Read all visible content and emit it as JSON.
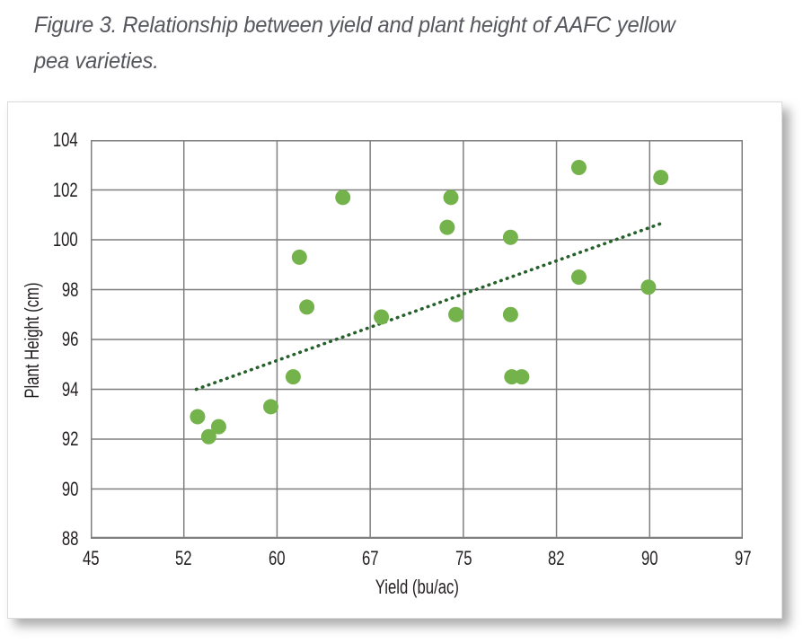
{
  "figure_caption": {
    "line1": "Figure 3. Relationship between yield and plant height of AAFC yellow",
    "line2": "pea varieties."
  },
  "chart_data": {
    "type": "scatter",
    "title": "",
    "xlabel": "Yield (bu/ac)",
    "ylabel": "Plant Height (cm)",
    "xlim": [
      45,
      97.5
    ],
    "ylim": [
      88,
      104
    ],
    "grid": true,
    "legend": "none",
    "x_tick_labels": [
      "45",
      "52",
      "60",
      "67",
      "75",
      "82",
      "90",
      "97"
    ],
    "x_tick_values": [
      45,
      52.5,
      60,
      67.5,
      75,
      82.5,
      90,
      97.5
    ],
    "y_tick_labels": [
      "88",
      "90",
      "92",
      "94",
      "96",
      "98",
      "100",
      "102",
      "104"
    ],
    "y_tick_values": [
      88,
      90,
      92,
      94,
      96,
      98,
      100,
      102,
      104
    ],
    "points": [
      [
        53.6,
        92.9
      ],
      [
        54.5,
        92.1
      ],
      [
        55.3,
        92.5
      ],
      [
        59.5,
        93.3
      ],
      [
        61.3,
        94.5
      ],
      [
        61.8,
        99.3
      ],
      [
        62.4,
        97.3
      ],
      [
        65.3,
        101.7
      ],
      [
        68.4,
        96.9
      ],
      [
        73.7,
        100.5
      ],
      [
        74.0,
        101.7
      ],
      [
        74.4,
        97.0
      ],
      [
        78.8,
        100.1
      ],
      [
        78.8,
        97.0
      ],
      [
        78.9,
        94.5
      ],
      [
        79.7,
        94.5
      ],
      [
        84.3,
        102.9
      ],
      [
        84.3,
        98.5
      ],
      [
        89.9,
        98.1
      ],
      [
        90.9,
        102.5
      ]
    ],
    "marker_radius_px": 8.5,
    "trendline": {
      "style": "dotted",
      "x1": 53.5,
      "y1": 94.0,
      "x2": 90.9,
      "y2": 100.65
    },
    "colors": {
      "point": "#74b24c",
      "trend": "#26602a",
      "grid": "#7f7f7f",
      "axis_text": "#231f20",
      "caption_text": "#55575c"
    }
  }
}
